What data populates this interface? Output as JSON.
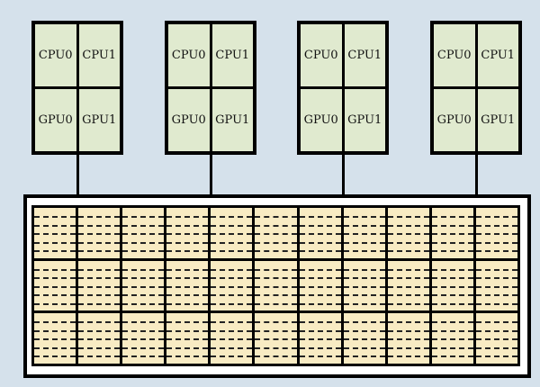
{
  "nodes": [
    {
      "cells": [
        "CPU0",
        "CPU1",
        "GPU0",
        "GPU1"
      ]
    },
    {
      "cells": [
        "CPU0",
        "CPU1",
        "GPU0",
        "GPU1"
      ]
    },
    {
      "cells": [
        "CPU0",
        "CPU1",
        "GPU0",
        "GPU1"
      ]
    },
    {
      "cells": [
        "CPU0",
        "CPU1",
        "GPU0",
        "GPU1"
      ]
    }
  ],
  "memory_pool": {
    "columns": 11,
    "rows": 3,
    "lines_per_block": 5
  },
  "colors": {
    "background": "#d5e1eb",
    "node_cell": "#e0eacf",
    "memory_block": "#f8ebc3",
    "border": "#000000"
  }
}
